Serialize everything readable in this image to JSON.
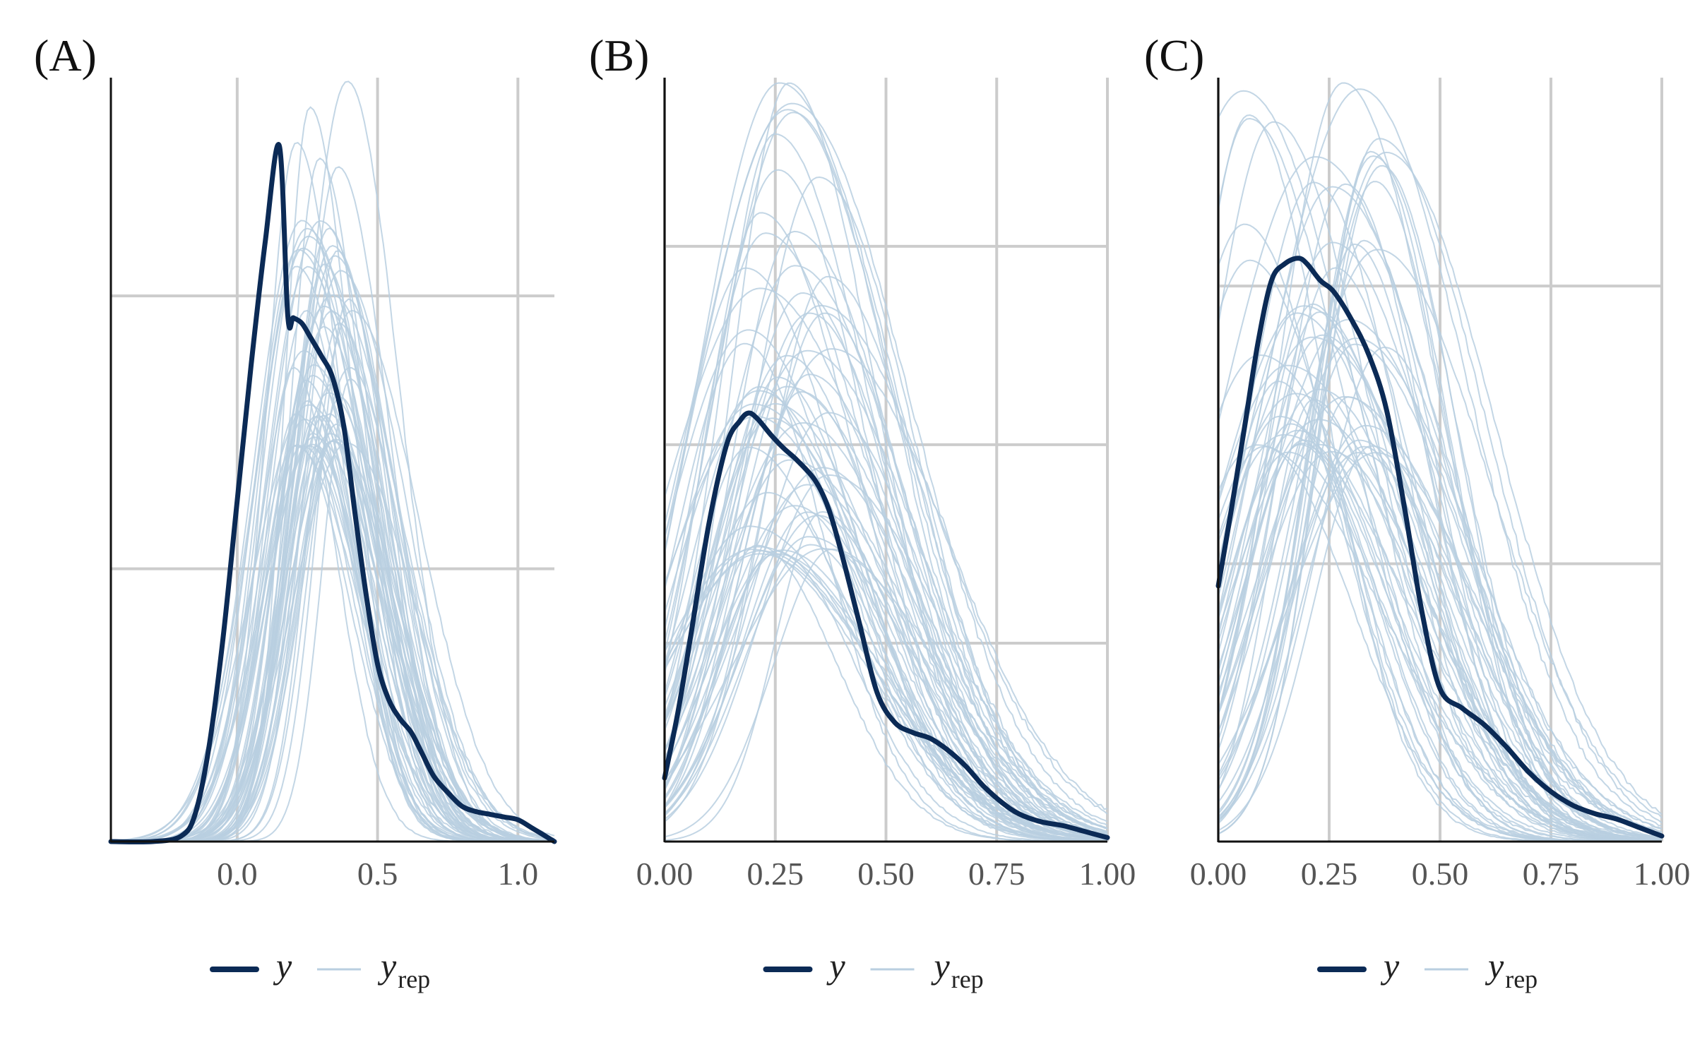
{
  "chart_data": [
    {
      "panel": "(A)",
      "type": "line",
      "xlim": [
        -0.45,
        1.13
      ],
      "ylim": [
        0,
        2.8
      ],
      "x_ticks": [
        0.0,
        0.5,
        1.0
      ],
      "x_tick_labels": [
        "0.0",
        "0.5",
        "1.0"
      ],
      "y_gridlines": [
        1.0,
        2.0
      ],
      "grid": true,
      "legend_position": "bottom",
      "legend": [
        "y",
        "y_rep"
      ],
      "colors": {
        "y": "#0b2a55",
        "y_rep": "#b9cfe0"
      },
      "series": [
        {
          "name": "y",
          "x": [
            -0.45,
            -0.3,
            -0.2,
            -0.15,
            -0.1,
            -0.05,
            0.0,
            0.05,
            0.1,
            0.15,
            0.18,
            0.2,
            0.23,
            0.26,
            0.3,
            0.34,
            0.38,
            0.42,
            0.46,
            0.5,
            0.54,
            0.58,
            0.62,
            0.66,
            0.7,
            0.75,
            0.8,
            0.85,
            0.9,
            0.95,
            1.0,
            1.05,
            1.13
          ],
          "y": [
            0,
            0,
            0.02,
            0.1,
            0.35,
            0.75,
            1.25,
            1.75,
            2.2,
            2.55,
            1.93,
            1.92,
            1.9,
            1.85,
            1.78,
            1.7,
            1.52,
            1.2,
            0.9,
            0.65,
            0.52,
            0.45,
            0.4,
            0.32,
            0.24,
            0.18,
            0.13,
            0.11,
            0.1,
            0.09,
            0.08,
            0.05,
            0
          ]
        },
        {
          "name": "y_rep",
          "replicates": 60,
          "mean_mode": 0.3,
          "mode_range": [
            0.2,
            0.42
          ],
          "peak_density_range": [
            1.45,
            2.8
          ],
          "sd_range": [
            0.12,
            0.2
          ]
        }
      ]
    },
    {
      "panel": "(B)",
      "type": "line",
      "xlim": [
        0.0,
        1.0
      ],
      "ylim": [
        0,
        3.85
      ],
      "x_ticks": [
        0.0,
        0.25,
        0.5,
        0.75,
        1.0
      ],
      "x_tick_labels": [
        "0.00",
        "0.25",
        "0.50",
        "0.75",
        "1.00"
      ],
      "y_gridlines": [
        1.0,
        2.0,
        3.0
      ],
      "grid": true,
      "legend_position": "bottom",
      "legend": [
        "y",
        "y_rep"
      ],
      "colors": {
        "y": "#0b2a55",
        "y_rep": "#b9cfe0"
      },
      "series": [
        {
          "name": "y",
          "x": [
            0.0,
            0.03,
            0.06,
            0.1,
            0.14,
            0.17,
            0.19,
            0.21,
            0.24,
            0.27,
            0.3,
            0.34,
            0.37,
            0.4,
            0.44,
            0.48,
            0.52,
            0.56,
            0.6,
            0.64,
            0.68,
            0.72,
            0.76,
            0.8,
            0.85,
            0.9,
            0.95,
            1.0
          ],
          "y": [
            0.32,
            0.65,
            1.05,
            1.6,
            2.0,
            2.12,
            2.16,
            2.13,
            2.05,
            1.98,
            1.92,
            1.82,
            1.68,
            1.45,
            1.1,
            0.75,
            0.6,
            0.55,
            0.52,
            0.46,
            0.38,
            0.28,
            0.2,
            0.14,
            0.1,
            0.08,
            0.05,
            0.02
          ]
        },
        {
          "name": "y_rep",
          "replicates": 60,
          "mean_mode": 0.3,
          "mode_range": [
            0.18,
            0.38
          ],
          "peak_density_range": [
            1.45,
            3.85
          ],
          "sd_range": [
            0.14,
            0.22
          ]
        }
      ]
    },
    {
      "panel": "(C)",
      "type": "line",
      "xlim": [
        0.0,
        1.0
      ],
      "ylim": [
        0,
        2.75
      ],
      "x_ticks": [
        0.0,
        0.25,
        0.5,
        0.75,
        1.0
      ],
      "x_tick_labels": [
        "0.00",
        "0.25",
        "0.50",
        "0.75",
        "1.00"
      ],
      "y_gridlines": [
        1.0,
        2.0
      ],
      "grid": true,
      "legend_position": "bottom",
      "legend": [
        "y",
        "y_rep"
      ],
      "colors": {
        "y": "#0b2a55",
        "y_rep": "#b9cfe0"
      },
      "series": [
        {
          "name": "y",
          "x": [
            0.0,
            0.03,
            0.06,
            0.09,
            0.12,
            0.15,
            0.18,
            0.2,
            0.23,
            0.26,
            0.3,
            0.34,
            0.38,
            0.42,
            0.46,
            0.5,
            0.55,
            0.6,
            0.65,
            0.7,
            0.75,
            0.8,
            0.85,
            0.9,
            0.95,
            1.0
          ],
          "y": [
            0.92,
            1.2,
            1.5,
            1.8,
            2.02,
            2.08,
            2.1,
            2.08,
            2.02,
            1.98,
            1.88,
            1.75,
            1.55,
            1.2,
            0.82,
            0.55,
            0.48,
            0.42,
            0.34,
            0.25,
            0.18,
            0.13,
            0.1,
            0.08,
            0.05,
            0.02
          ]
        },
        {
          "name": "y_rep",
          "replicates": 60,
          "mean_mode": 0.25,
          "mode_range": [
            0.05,
            0.38
          ],
          "peak_density_range": [
            1.4,
            2.75
          ],
          "sd_range": [
            0.13,
            0.22
          ]
        }
      ]
    }
  ],
  "legend_labels": {
    "observed": "y",
    "replicated": "y",
    "replicated_sub": "rep"
  }
}
